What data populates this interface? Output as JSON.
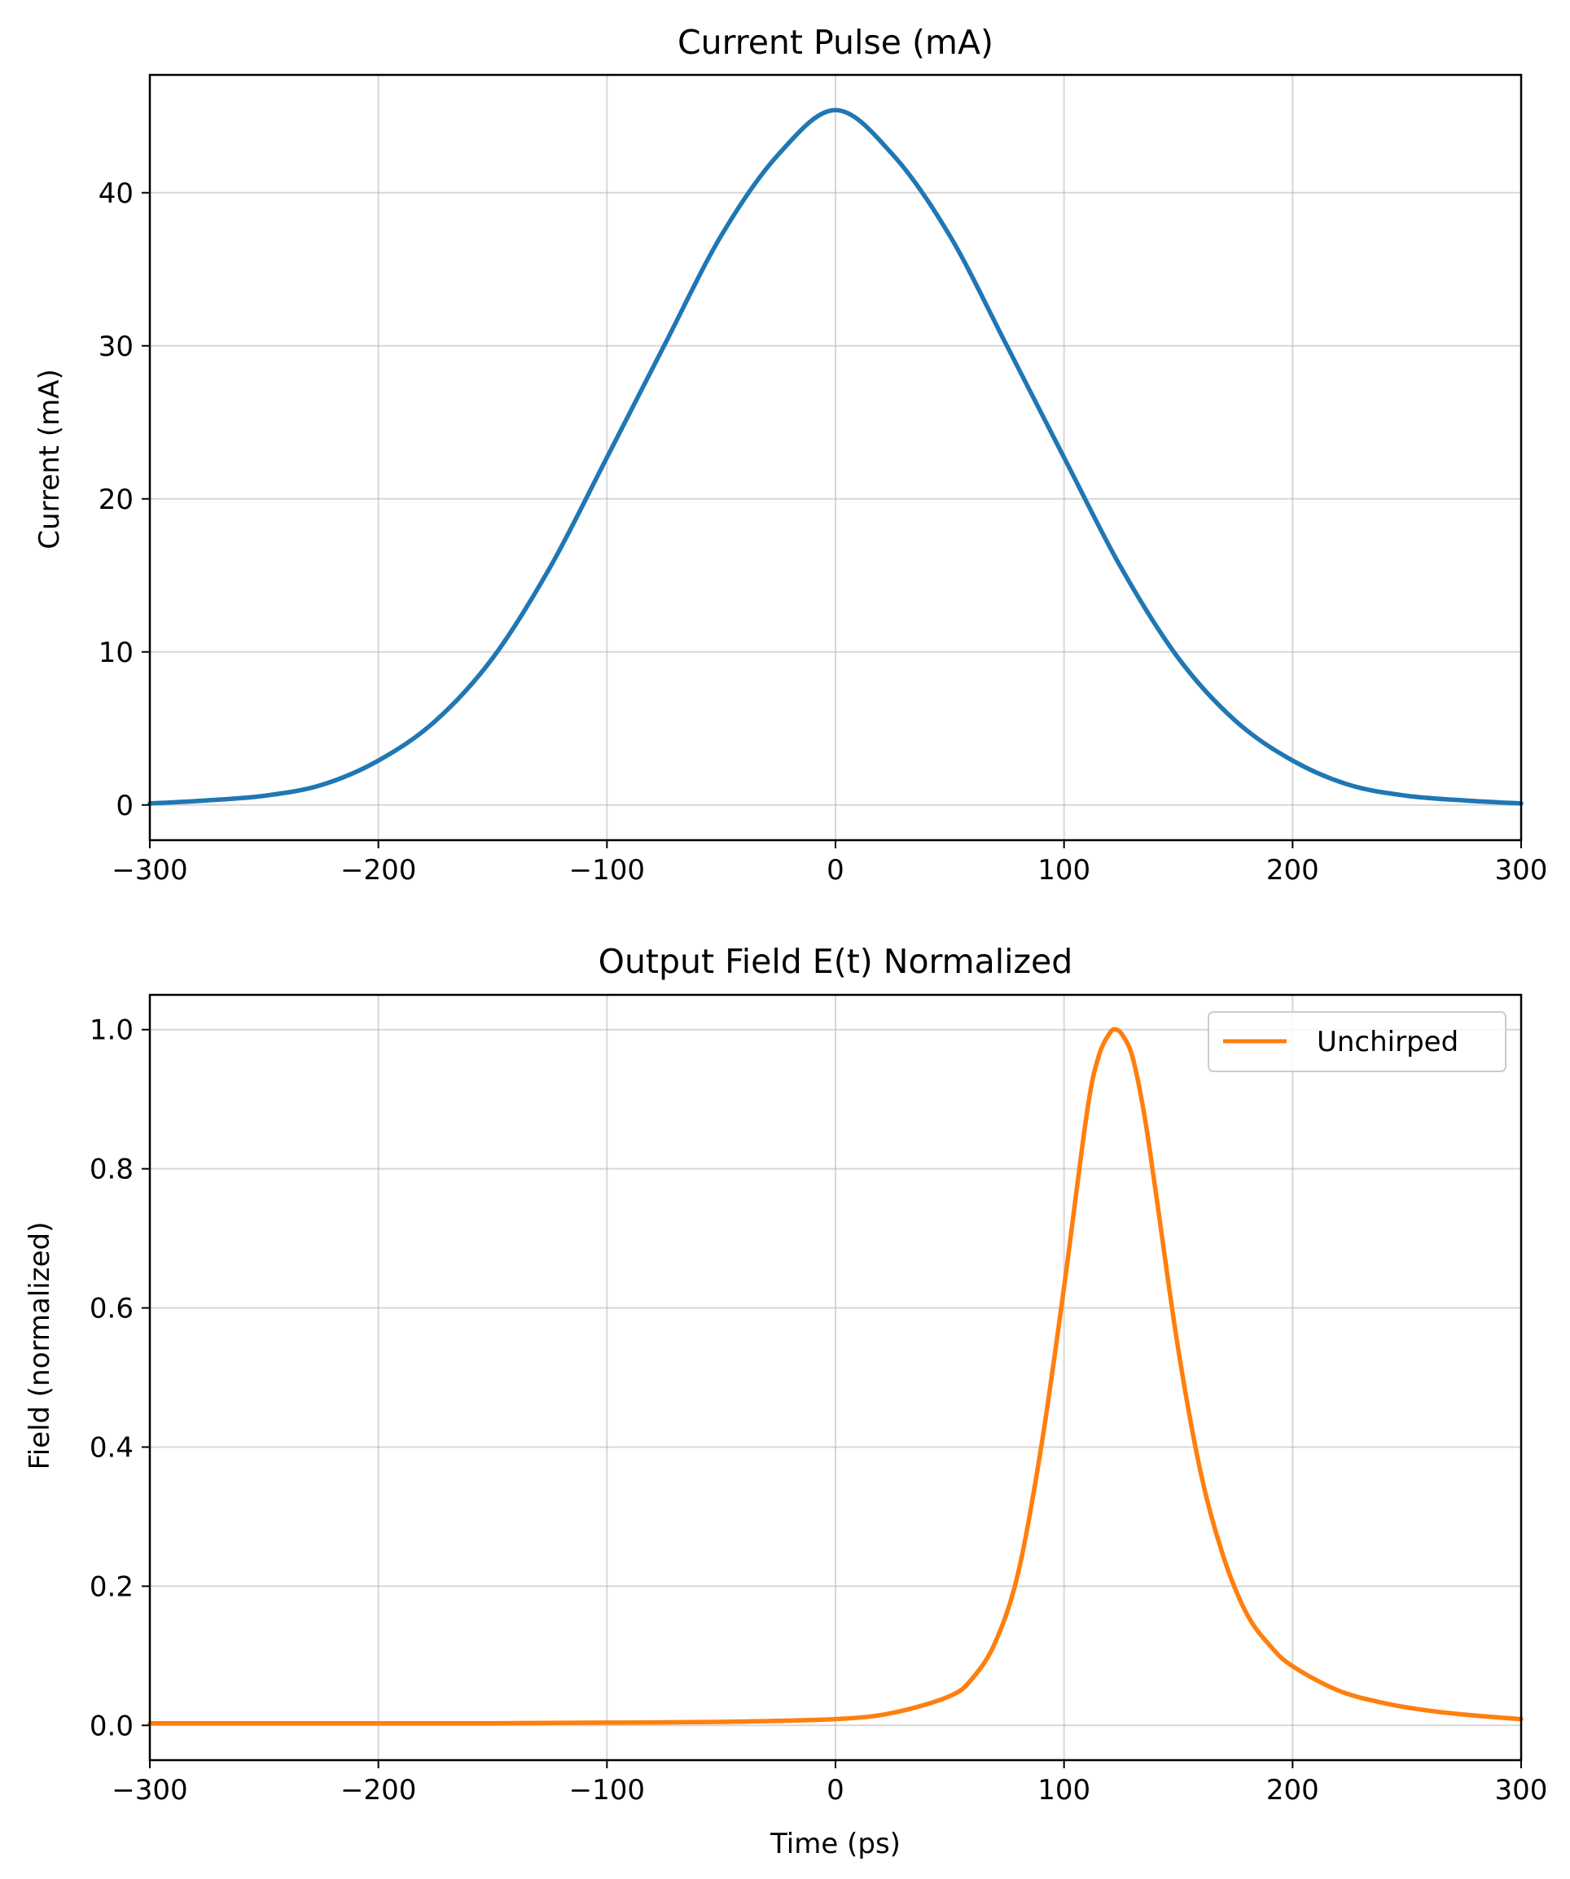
{
  "chart_data": [
    {
      "type": "line",
      "title": "Current Pulse (mA)",
      "xlabel": "",
      "ylabel": "Current (mA)",
      "xlim": [
        -300,
        300
      ],
      "ylim": [
        -2.3,
        47.7
      ],
      "xticks": [
        -300,
        -200,
        -100,
        0,
        100,
        200,
        300
      ],
      "xtick_labels": [
        "−300",
        "−200",
        "−100",
        "0",
        "100",
        "200",
        "300"
      ],
      "yticks": [
        0,
        10,
        20,
        30,
        40
      ],
      "ytick_labels": [
        "0",
        "10",
        "20",
        "30",
        "40"
      ],
      "grid": true,
      "legend": null,
      "series": [
        {
          "color": "#1f77b4",
          "x": [
            -300,
            -275,
            -250,
            -225,
            -200,
            -175,
            -150,
            -125,
            -100,
            -75,
            -50,
            -25,
            0,
            25,
            50,
            75,
            100,
            125,
            150,
            175,
            200,
            225,
            250,
            275,
            300
          ],
          "y": [
            0.1,
            0.3,
            0.6,
            1.3,
            2.9,
            5.5,
            9.6,
            15.5,
            22.7,
            30.0,
            37.2,
            42.5,
            45.4,
            42.5,
            37.2,
            30.0,
            22.7,
            15.5,
            9.6,
            5.5,
            2.9,
            1.3,
            0.6,
            0.3,
            0.1
          ]
        }
      ]
    },
    {
      "type": "line",
      "title": "Output Field E(t) Normalized",
      "xlabel": "Time (ps)",
      "ylabel": "Field (normalized)",
      "xlim": [
        -300,
        300
      ],
      "ylim": [
        -0.05,
        1.05
      ],
      "xticks": [
        -300,
        -200,
        -100,
        0,
        100,
        200,
        300
      ],
      "xtick_labels": [
        "−300",
        "−200",
        "−100",
        "0",
        "100",
        "200",
        "300"
      ],
      "yticks": [
        0.0,
        0.2,
        0.4,
        0.6,
        0.8,
        1.0
      ],
      "ytick_labels": [
        "0.0",
        "0.2",
        "0.4",
        "0.6",
        "0.8",
        "1.0"
      ],
      "grid": true,
      "legend": "top-right",
      "series": [
        {
          "name": "Unchirped",
          "color": "#ff7f0e",
          "x": [
            -300,
            -250,
            -200,
            -150,
            -100,
            -50,
            0,
            25,
            50,
            60,
            70,
            80,
            90,
            100,
            110,
            115,
            120,
            123,
            126,
            130,
            135,
            140,
            150,
            160,
            170,
            180,
            190,
            200,
            220,
            240,
            260,
            280,
            300
          ],
          "y": [
            0.003,
            0.003,
            0.003,
            0.003,
            0.004,
            0.005,
            0.009,
            0.018,
            0.042,
            0.068,
            0.12,
            0.22,
            0.4,
            0.63,
            0.88,
            0.96,
            0.995,
            1.0,
            0.99,
            0.96,
            0.88,
            0.77,
            0.54,
            0.36,
            0.24,
            0.16,
            0.115,
            0.085,
            0.05,
            0.032,
            0.021,
            0.014,
            0.009
          ]
        }
      ]
    }
  ]
}
